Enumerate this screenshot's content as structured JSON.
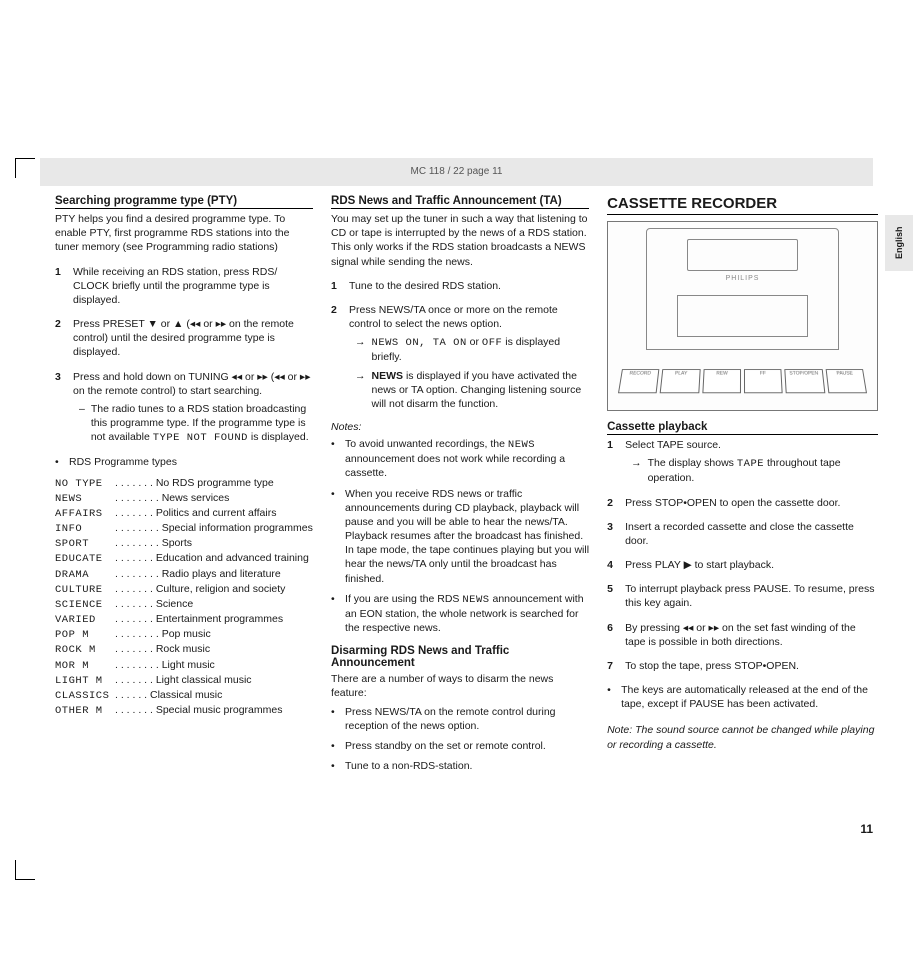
{
  "header": "MC 118 / 22  page 11",
  "sideTab": "English",
  "pageNumber": "11",
  "col1": {
    "h1": "Searching programme type (PTY)",
    "intro": "PTY helps you find a desired programme type. To enable PTY, first programme RDS stations into the tuner memory (see Programming radio stations)",
    "step1": "While receiving an RDS station, press RDS/ CLOCK briefly until the programme type is displayed.",
    "step2": "Press PRESET ▼ or ▲ (◂◂ or ▸▸ on the remote control) until the desired programme type is displayed.",
    "step3": "Press and hold down on TUNING ◂◂ or ▸▸ (◂◂ or ▸▸ on the remote control) to start searching.",
    "step3sub": "The radio tunes to a RDS station broadcasting this programme type. If the programme type is not available ",
    "step3subCode": "TYPE NOT FOUND",
    "step3subTail": " is displayed.",
    "ptyHeader": "RDS Programme types",
    "pty": [
      {
        "c": "NO TYPE",
        "d": "No RDS programme type"
      },
      {
        "c": "NEWS",
        "d": "News services"
      },
      {
        "c": "AFFAIRS",
        "d": "Politics and current affairs"
      },
      {
        "c": "INFO",
        "d": "Special information programmes"
      },
      {
        "c": "SPORT",
        "d": "Sports"
      },
      {
        "c": "EDUCATE",
        "d": "Education and advanced training"
      },
      {
        "c": "DRAMA",
        "d": "Radio plays and literature"
      },
      {
        "c": "CULTURE",
        "d": "Culture, religion and society"
      },
      {
        "c": "SCIENCE",
        "d": "Science"
      },
      {
        "c": "VARIED",
        "d": "Entertainment programmes"
      },
      {
        "c": "POP M",
        "d": "Pop music"
      },
      {
        "c": "ROCK M",
        "d": "Rock music"
      },
      {
        "c": "MOR M",
        "d": "Light music"
      },
      {
        "c": "LIGHT M",
        "d": "Light classical music"
      },
      {
        "c": "CLASSICS",
        "d": "Classical music"
      },
      {
        "c": "OTHER M",
        "d": "Special music programmes"
      }
    ]
  },
  "col2": {
    "h1": "RDS News and Traffic Announcement (TA)",
    "intro": "You may set up the tuner in such a way that listening to CD or tape is interrupted by the news of a RDS station. This only works if the RDS station broadcasts a NEWS signal while sending the news.",
    "step1": "Tune to the desired RDS station.",
    "step2": "Press NEWS/TA once or more on the remote control to select the news option.",
    "step2aCode": "NEWS ON, TA ON",
    "step2aMid": " or ",
    "step2aCode2": "OFF",
    "step2aTail": " is displayed briefly.",
    "step2bBold": "NEWS",
    "step2bTail": "  is displayed if you have activated the news or TA  option. Changing listening source will not disarm the function.",
    "notesLabel": "Notes:",
    "note1a": "To avoid unwanted recordings, the ",
    "note1code": "NEWS",
    "note1b": " announcement does not work while recording a cassette.",
    "note2": "When you receive RDS news or traffic announcements during CD playback, playback will pause and you will be able to hear the news/TA. Playback resumes after the broadcast has finished. In tape mode, the tape continues playing but you will hear the news/TA only until the broadcast has finished.",
    "note3a": "If you are using the RDS ",
    "note3code": "NEWS",
    "note3b": " announcement with an EON station, the whole network is searched for the respective news.",
    "h2": "Disarming RDS News and Traffic Announcement",
    "disarmIntro": "There are a number of ways to disarm the news feature:",
    "d1": "Press NEWS/TA on the remote control during reception of the news option.",
    "d2": "Press standby on the set or remote control.",
    "d3": "Tune to a non-RDS-station."
  },
  "col3": {
    "title": "CASSETTE RECORDER",
    "brand": "PHILIPS",
    "buttons": [
      "RECORD",
      "PLAY",
      "REW",
      "FF",
      "STOP/OPEN",
      "PAUSE"
    ],
    "h1": "Cassette playback",
    "step1": "Select TAPE source.",
    "step1subA": "The display shows ",
    "step1subCode": "TAPE",
    "step1subB": "  throughout tape operation.",
    "step2": "Press STOP•OPEN to open the cassette door.",
    "step3": "Insert a recorded cassette and close the cassette door.",
    "step4": "Press PLAY ▶ to start playback.",
    "step5": "To interrupt playback press PAUSE. To resume, press this key again.",
    "step6": "By pressing ◂◂ or ▸▸ on the set fast winding of the tape is possible in both directions.",
    "step7": "To stop the tape, press STOP•OPEN.",
    "bullet": "The keys are automatically released at the end of the tape, except if PAUSE has been activated.",
    "note": "Note: The sound source cannot be changed while playing or recording a cassette."
  }
}
